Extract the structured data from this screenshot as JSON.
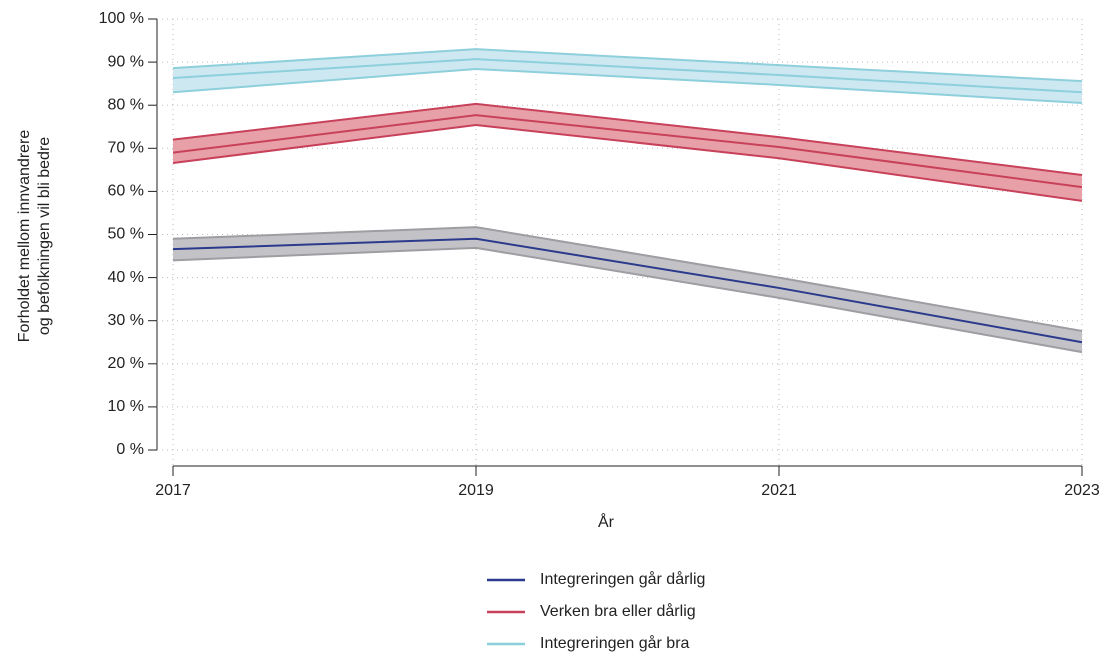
{
  "chart_data": {
    "type": "line",
    "ylabel": [
      "Forholdet mellom innvandrere",
      "og befolkningen vil bli bedre"
    ],
    "xlabel": "År",
    "x": [
      2017,
      2019,
      2021,
      2023
    ],
    "xlim": [
      2017,
      2023
    ],
    "xticks": [
      2017,
      2019,
      2021,
      2023
    ],
    "ylim": [
      0,
      100
    ],
    "yticks": [
      {
        "value": 0,
        "label": "0 %"
      },
      {
        "value": 10,
        "label": "10 %"
      },
      {
        "value": 20,
        "label": "20 %"
      },
      {
        "value": 30,
        "label": "30 %"
      },
      {
        "value": 40,
        "label": "40 %"
      },
      {
        "value": 50,
        "label": "50 %"
      },
      {
        "value": 60,
        "label": "60 %"
      },
      {
        "value": 70,
        "label": "70 %"
      },
      {
        "value": 80,
        "label": "80 %"
      },
      {
        "value": 90,
        "label": "90 %"
      },
      {
        "value": 100,
        "label": "100 %"
      }
    ],
    "grid": true,
    "legend": "bottom",
    "series": [
      {
        "name": "Integreringen går dårlig",
        "color": "#2b3a8c",
        "band_color": "#c3c3c7",
        "band_edge": "#9d9da2",
        "values": [
          46.6,
          49,
          37.6,
          25
        ],
        "lower": [
          44,
          46.9,
          35.3,
          22.7
        ],
        "upper": [
          49,
          51.7,
          40,
          27.6
        ]
      },
      {
        "name": "Verken bra eller dårlig",
        "color": "#c8415a",
        "band_color": "#e8a0a8",
        "band_edge": "#c8415a",
        "values": [
          69,
          77.7,
          70.3,
          61
        ],
        "lower": [
          66.6,
          75.4,
          67.7,
          57.8
        ],
        "upper": [
          72,
          80.3,
          72.6,
          63.8
        ]
      },
      {
        "name": "Integreringen går bra",
        "color": "#8ecfdc",
        "band_color": "#cde8f0",
        "band_edge": "#8ecfdc",
        "values": [
          86.3,
          90.7,
          87,
          83
        ],
        "lower": [
          83,
          88.4,
          84.7,
          80.5
        ],
        "upper": [
          88.6,
          93,
          89.3,
          85.6
        ]
      }
    ]
  }
}
